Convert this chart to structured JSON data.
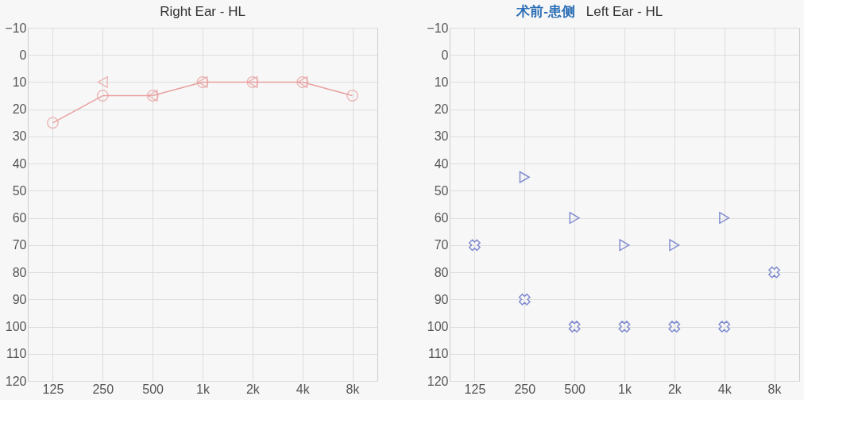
{
  "chart_data": [
    {
      "type": "line",
      "title": "Right Ear - HL",
      "categories": [
        "125",
        "250",
        "500",
        "1k",
        "2k",
        "4k",
        "8k"
      ],
      "ylim": [
        120,
        -10
      ],
      "yticks": [
        -10,
        0,
        10,
        20,
        30,
        40,
        50,
        60,
        70,
        80,
        90,
        100,
        110,
        120
      ],
      "grid": true,
      "legend": false,
      "series": [
        {
          "color": "#e8a0a0",
          "marker": "circle",
          "values": [
            25,
            15,
            15,
            10,
            10,
            10,
            15
          ]
        },
        {
          "type": "scatter",
          "color": "#e8a0a0",
          "marker": "triangle",
          "values": [
            null,
            10,
            15,
            10,
            10,
            10,
            null
          ]
        }
      ]
    },
    {
      "type": "scatter",
      "title": "Left Ear - HL",
      "annotations": [
        "术前-患侧"
      ],
      "categories": [
        "125",
        "250",
        "500",
        "1k",
        "2k",
        "4k",
        "8k"
      ],
      "ylim": [
        120,
        -10
      ],
      "yticks": [
        -10,
        0,
        10,
        20,
        30,
        40,
        50,
        60,
        70,
        80,
        90,
        100,
        110,
        120
      ],
      "grid": true,
      "legend": false,
      "series": [
        {
          "color": "#5060c0",
          "marker": "cross",
          "values": [
            70,
            90,
            100,
            100,
            100,
            100,
            80
          ]
        },
        {
          "color": "#5060c0",
          "marker": "triangle",
          "values": [
            null,
            45,
            60,
            70,
            70,
            60,
            null
          ]
        }
      ]
    }
  ]
}
